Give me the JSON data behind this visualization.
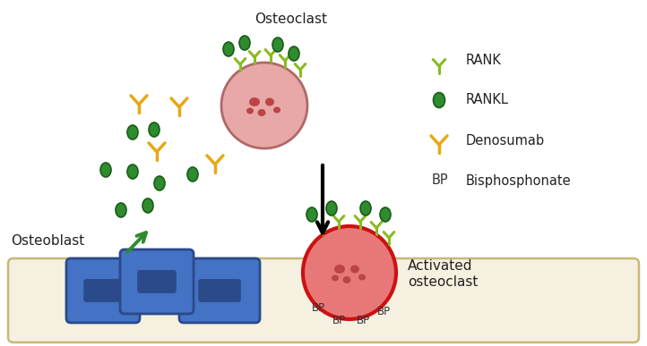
{
  "bg_color": "#ffffff",
  "bone_color": "#f5f0e0",
  "bone_border": "#c8b878",
  "osteoblast_color": "#4472c4",
  "osteoblast_dark": "#2a4a8a",
  "osteoclast_fill": "#e8a8a8",
  "osteoclast_border": "#b06868",
  "activated_fill": "#e87878",
  "activated_border": "#cc1111",
  "rankl_fill": "#2e8b2e",
  "rankl_border": "#1a5c1a",
  "rank_color": "#88bb22",
  "denosumab_color": "#e6a817",
  "inner_cell_color": "#bb4444",
  "text_color": "#222222",
  "font_size": 11,
  "title": "Osteoclast",
  "label_osteoblast": "Osteoblast",
  "label_activated_1": "Activated",
  "label_activated_2": "osteoclast",
  "legend_rank": "RANK",
  "legend_rankl": "RANKL",
  "legend_denosumab": "Denosumab",
  "legend_bp_label": "BP",
  "legend_bp_text": "Bisphosphonate"
}
